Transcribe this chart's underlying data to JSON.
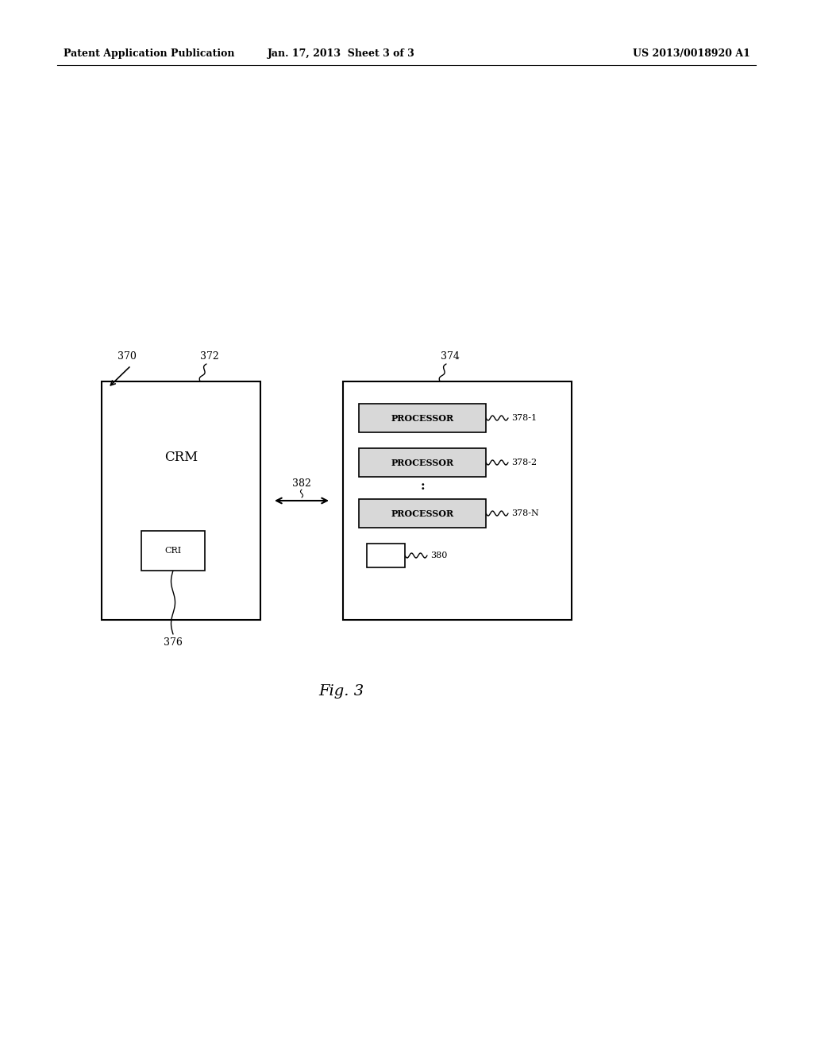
{
  "bg_color": "#ffffff",
  "header_left": "Patent Application Publication",
  "header_center": "Jan. 17, 2013  Sheet 3 of 3",
  "header_right": "US 2013/0018920 A1",
  "fig_label": "Fig. 3",
  "crm_text": "CRM",
  "cri_text": "CRI",
  "processor_text": "PROCESSOR",
  "label_370": "370",
  "label_372": "372",
  "label_374": "374",
  "label_376": "376",
  "label_378_1": "378-1",
  "label_378_2": "378-2",
  "label_378_N": "378-N",
  "label_380": "380",
  "label_382": "382",
  "proc_fill": "#d8d8d8"
}
